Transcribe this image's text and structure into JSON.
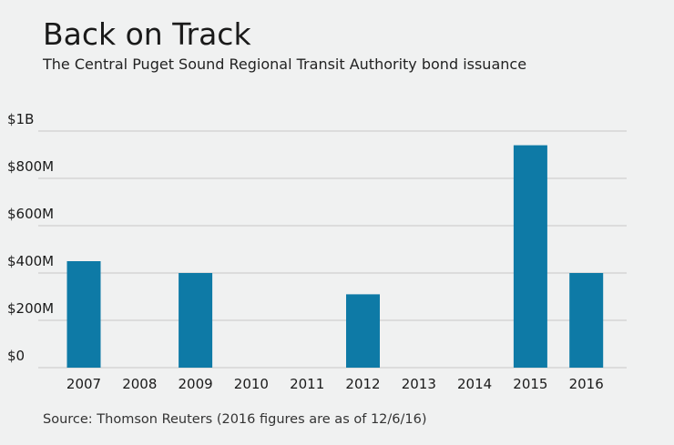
{
  "header": {
    "title": "Back on Track",
    "subtitle": "The Central Puget Sound Regional Transit Authority bond issuance"
  },
  "footer": {
    "source": "Source: Thomson Reuters (2016 figures are as of 12/6/16)"
  },
  "colors": {
    "bar": "#0e7aa6",
    "grid": "#c8c8c8",
    "background": "#f0f1f1"
  },
  "chart_data": {
    "type": "bar",
    "title": "Back on Track",
    "subtitle": "The Central Puget Sound Regional Transit Authority bond issuance",
    "categories": [
      "2007",
      "2008",
      "2009",
      "2010",
      "2011",
      "2012",
      "2013",
      "2014",
      "2015",
      "2016"
    ],
    "values": [
      450,
      0,
      400,
      0,
      0,
      310,
      0,
      0,
      940,
      400
    ],
    "unit": "million USD",
    "ylim": [
      0,
      1000
    ],
    "yticks": [
      0,
      200,
      400,
      600,
      800,
      1000
    ],
    "ytick_labels": [
      "$0",
      "$200M",
      "$400M",
      "$600M",
      "$800M",
      "$1B"
    ],
    "xlabel": "",
    "ylabel": "",
    "grid": true,
    "legend": "none"
  }
}
